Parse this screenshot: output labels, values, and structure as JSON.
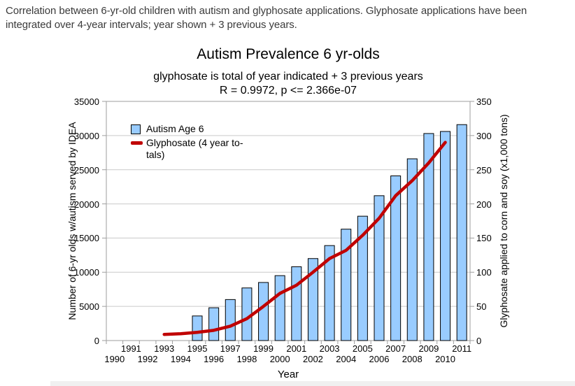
{
  "page": {
    "caption": "Correlation between 6-yr-old children with autism and glyphosate applications. Glyphosate applications have been integrated over 4-year intervals; year shown + 3 previous years."
  },
  "colors": {
    "bar_fill": "#99CCFF",
    "bar_border": "#000000",
    "line": "#C00000",
    "grid": "#C9C9C9",
    "axis": "#9E9E9E",
    "caption_text": "#3B3B3B",
    "footer_strip": "#F0F0F0"
  },
  "chart_data": {
    "type": "combo",
    "title": "Autism Prevalence 6 yr-olds",
    "subtitle": "glyphosate is total of year indicated + 3 previous years",
    "stats": "R = 0.9972, p <= 2.366e-07",
    "xlabel": "Year",
    "ylabel_left": "Number of 6-yr olds w/autism served by IDEA",
    "ylabel_right": "Glyphosate applied to corn and soy (x1,000 tons)",
    "categories": [
      1990,
      1991,
      1992,
      1993,
      1994,
      1995,
      1996,
      1997,
      1998,
      1999,
      2000,
      2001,
      2002,
      2003,
      2004,
      2005,
      2006,
      2007,
      2008,
      2009,
      2010,
      2011
    ],
    "series": [
      {
        "name": "Autism Age 6",
        "type": "bar",
        "axis": "left",
        "color": "#99CCFF",
        "border_color": "#000000",
        "values": [
          null,
          null,
          null,
          null,
          null,
          3600,
          4800,
          6000,
          7700,
          8500,
          9500,
          10800,
          12000,
          13900,
          16300,
          18200,
          21200,
          24100,
          26600,
          30300,
          30600,
          31600
        ]
      },
      {
        "name": "Glyphosate (4 year totals)",
        "type": "line",
        "axis": "right",
        "color": "#C00000",
        "values": [
          null,
          null,
          null,
          9,
          10,
          12,
          15,
          21,
          32,
          50,
          69,
          81,
          100,
          120,
          132,
          154,
          179,
          212,
          234,
          260,
          290,
          null
        ]
      }
    ],
    "left_axis": {
      "min": 0,
      "max": 35000,
      "step": 5000,
      "tick_labels": [
        "0",
        "5000",
        "10000",
        "15000",
        "20000",
        "25000",
        "30000",
        "35000"
      ]
    },
    "right_axis": {
      "min": 0,
      "max": 350,
      "step": 50,
      "tick_labels": [
        "0",
        "50",
        "100",
        "150",
        "200",
        "250",
        "300",
        "350"
      ]
    },
    "grid": true,
    "legend_position": "top-left-inside",
    "legend_display_lines": [
      [
        "Autism Age 6"
      ],
      [
        "Glyphosate (4 year to-",
        "tals)"
      ]
    ]
  }
}
